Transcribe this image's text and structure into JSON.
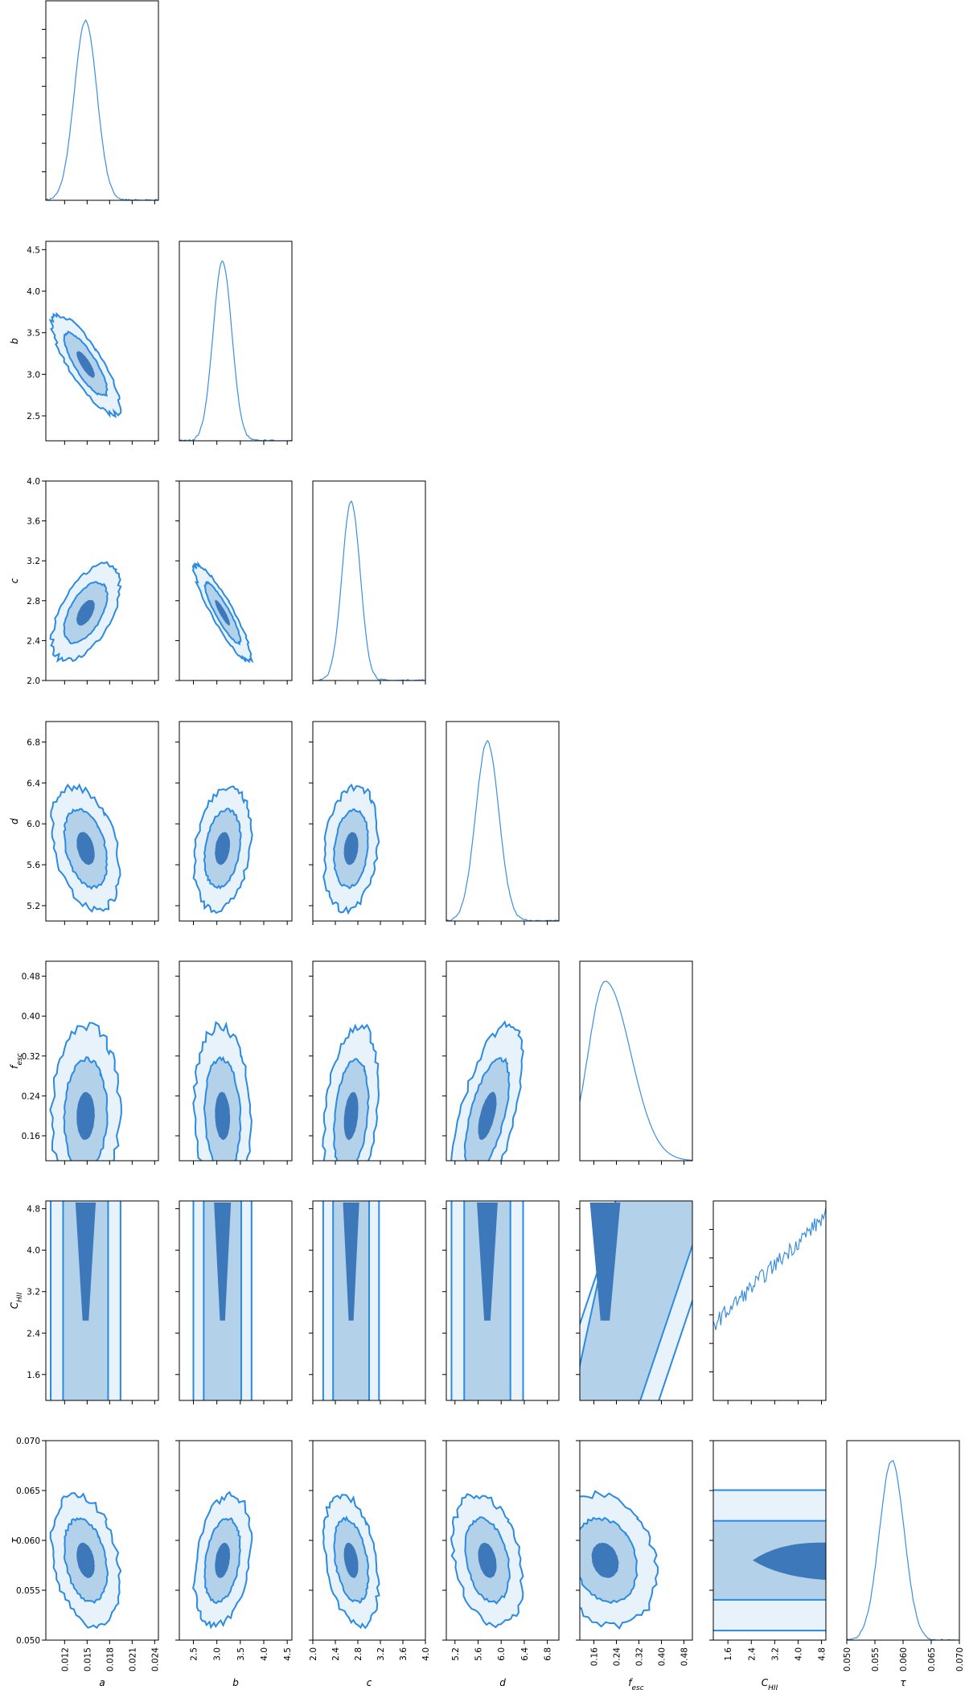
{
  "chart_data": {
    "type": "corner",
    "description_free": true,
    "params": [
      {
        "key": "a",
        "label": "a",
        "ticks": [
          "0.012",
          "0.015",
          "0.018",
          "0.021",
          "0.024"
        ],
        "range": [
          0.0095,
          0.0245
        ],
        "peak": 0.0148,
        "sd": 0.0015
      },
      {
        "key": "b",
        "label": "b",
        "ticks": [
          "2.5",
          "3.0",
          "3.5",
          "4.0",
          "4.5"
        ],
        "range": [
          2.2,
          4.6
        ],
        "peak": 3.12,
        "sd": 0.2
      },
      {
        "key": "c",
        "label": "c",
        "ticks": [
          "2.0",
          "2.4",
          "2.8",
          "3.2",
          "3.6",
          "4.0"
        ],
        "range": [
          2.0,
          4.0
        ],
        "peak": 2.68,
        "sd": 0.16
      },
      {
        "key": "d",
        "label": "d",
        "ticks": [
          "5.2",
          "5.6",
          "6.0",
          "6.4",
          "6.8"
        ],
        "range": [
          5.05,
          7.0
        ],
        "peak": 5.76,
        "sd": 0.2
      },
      {
        "key": "f_esc",
        "label": "f",
        "label_sub": "esc",
        "ticks": [
          "0.16",
          "0.24",
          "0.32",
          "0.40",
          "0.48"
        ],
        "range": [
          0.11,
          0.51
        ],
        "peak": 0.2,
        "sd": 0.06
      },
      {
        "key": "C_HII",
        "label": "C",
        "label_sub": "HII",
        "ticks": [
          "1.6",
          "2.4",
          "3.2",
          "4.0",
          "4.8"
        ],
        "range": [
          1.1,
          4.95
        ],
        "peak": 4.95,
        "sd": 1.0
      },
      {
        "key": "tau",
        "label": "τ",
        "ticks": [
          "0.050",
          "0.055",
          "0.060",
          "0.065",
          "0.070"
        ],
        "range": [
          0.05,
          0.07
        ],
        "peak": 0.058,
        "sd": 0.0022
      }
    ],
    "y_tick_labels": {
      "b": [
        "2.5",
        "3.0",
        "3.5",
        "4.0",
        "4.5"
      ],
      "c": [
        "2.0",
        "2.4",
        "2.8",
        "3.2",
        "3.6",
        "4.0"
      ],
      "d": [
        "5.2",
        "5.6",
        "6.0",
        "6.4",
        "6.8"
      ],
      "f_esc": [
        "0.16",
        "0.24",
        "0.32",
        "0.40",
        "0.48"
      ],
      "C_HII": [
        "1.6",
        "2.4",
        "3.2",
        "4.0",
        "4.8"
      ],
      "tau": [
        "0.050",
        "0.055",
        "0.060",
        "0.065",
        "0.070"
      ]
    },
    "correlations": [
      {
        "row": 1,
        "col": 0,
        "rho": -0.82
      },
      {
        "row": 2,
        "col": 0,
        "rho": 0.55
      },
      {
        "row": 2,
        "col": 1,
        "rho": -0.9
      },
      {
        "row": 3,
        "col": 0,
        "rho": -0.35
      },
      {
        "row": 3,
        "col": 1,
        "rho": 0.25
      },
      {
        "row": 3,
        "col": 2,
        "rho": 0.2
      },
      {
        "row": 4,
        "col": 0,
        "rho": 0.05
      },
      {
        "row": 4,
        "col": 1,
        "rho": -0.1
      },
      {
        "row": 4,
        "col": 2,
        "rho": 0.3
      },
      {
        "row": 4,
        "col": 3,
        "rho": 0.6
      },
      {
        "row": 5,
        "col": 4,
        "rho": 0.45
      },
      {
        "row": 6,
        "col": 0,
        "rho": -0.3
      },
      {
        "row": 6,
        "col": 1,
        "rho": 0.3
      },
      {
        "row": 6,
        "col": 2,
        "rho": -0.35
      },
      {
        "row": 6,
        "col": 3,
        "rho": -0.3
      },
      {
        "row": 6,
        "col": 4,
        "rho": -0.2
      },
      {
        "row": 6,
        "col": 5,
        "rho": -0.1
      }
    ],
    "levels": [
      "1-sigma",
      "2-sigma",
      "3-sigma"
    ],
    "contour_colors": {
      "inner": "#3d78ba",
      "middle": "#b3d1e9",
      "outer": "#e8f2fa",
      "line": "#2b8ae2"
    },
    "hist_color": "#3d8ee0"
  }
}
